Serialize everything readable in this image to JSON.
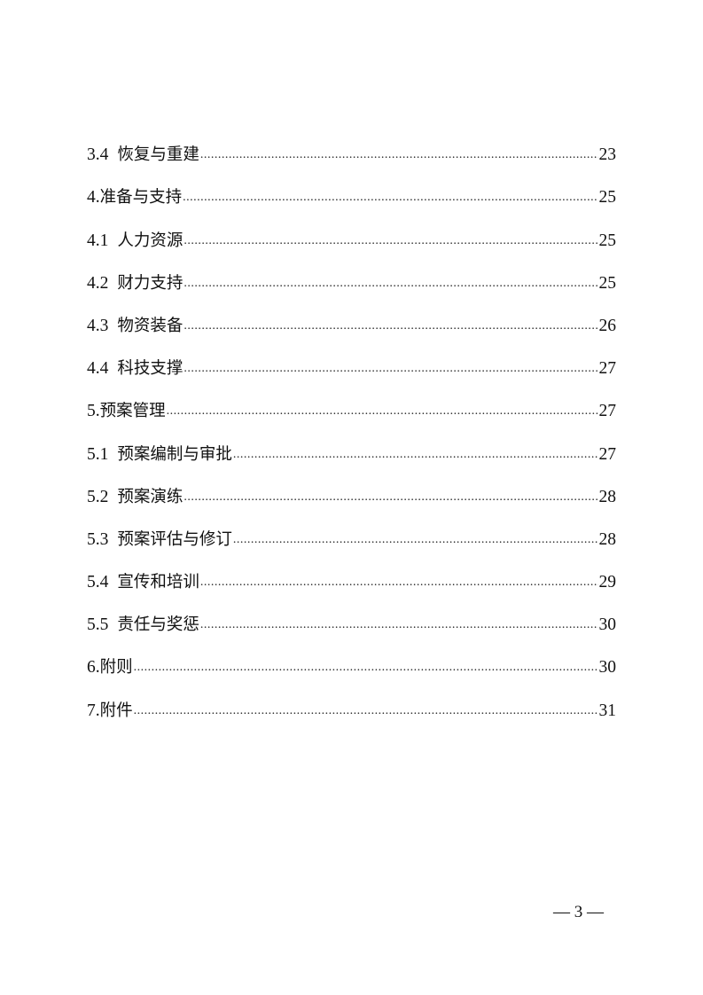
{
  "toc": [
    {
      "num": "3.4",
      "sep": " ",
      "title": "恢复与重建",
      "page": "23"
    },
    {
      "num": "4.",
      "sep": "",
      "title": "准备与支持",
      "page": "25"
    },
    {
      "num": "4.1",
      "sep": " ",
      "title": "人力资源",
      "page": "25"
    },
    {
      "num": "4.2",
      "sep": " ",
      "title": "财力支持",
      "page": "25"
    },
    {
      "num": "4.3",
      "sep": " ",
      "title": "物资装备",
      "page": "26"
    },
    {
      "num": "4.4",
      "sep": " ",
      "title": "科技支撑",
      "page": "27"
    },
    {
      "num": "5.",
      "sep": "",
      "title": "预案管理",
      "page": "27"
    },
    {
      "num": "5.1",
      "sep": " ",
      "title": "预案编制与审批",
      "page": "27"
    },
    {
      "num": "5.2",
      "sep": " ",
      "title": "预案演练",
      "page": "28"
    },
    {
      "num": "5.3",
      "sep": " ",
      "title": "预案评估与修订",
      "page": "28"
    },
    {
      "num": "5.4",
      "sep": " ",
      "title": "宣传和培训",
      "page": "29"
    },
    {
      "num": "5.5",
      "sep": " ",
      "title": "责任与奖惩",
      "page": "30"
    },
    {
      "num": "6.",
      "sep": "",
      "title": "附则",
      "page": "30"
    },
    {
      "num": "7.",
      "sep": "",
      "title": "附件",
      "page": "31"
    }
  ],
  "footer": {
    "page_number": "— 3 —"
  }
}
